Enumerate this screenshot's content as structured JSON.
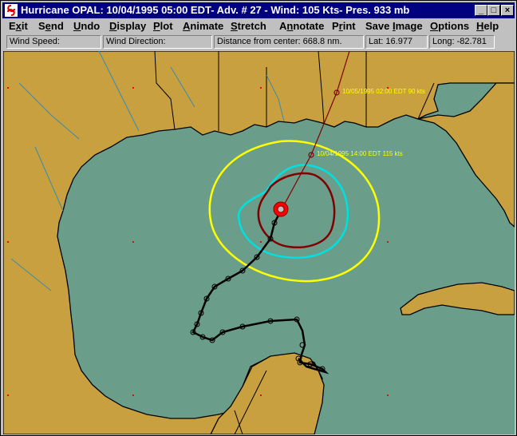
{
  "window": {
    "title": "Hurricane OPAL: 10/04/1995 05:00 EDT- Adv. # 27 - Wind: 105 Kts- Pres. 933 mb",
    "minimize_glyph": "_",
    "maximize_glyph": "□",
    "close_glyph": "×"
  },
  "menu": [
    {
      "pre": "E",
      "key": "x",
      "post": "it"
    },
    {
      "pre": "S",
      "key": "e",
      "post": "nd"
    },
    {
      "pre": "",
      "key": "U",
      "post": "ndo"
    },
    {
      "pre": "",
      "key": "D",
      "post": "isplay"
    },
    {
      "pre": "",
      "key": "P",
      "post": "lot"
    },
    {
      "pre": "",
      "key": "A",
      "post": "nimate"
    },
    {
      "pre": "",
      "key": "S",
      "post": "tretch"
    },
    {
      "pre": "A",
      "key": "n",
      "post": "notate"
    },
    {
      "pre": "P",
      "key": "r",
      "post": "int"
    },
    {
      "pre": "Save ",
      "key": "I",
      "post": "mage"
    },
    {
      "pre": "",
      "key": "O",
      "post": "ptions"
    },
    {
      "pre": "",
      "key": "H",
      "post": "elp"
    }
  ],
  "status": {
    "wind_speed": "Wind Speed:",
    "wind_direction": "Wind Direction:",
    "distance": "Distance from center: 668.8 nm.",
    "lat": "Lat: 16.977",
    "long": "Long: -82.781"
  },
  "map": {
    "forecast_labels": [
      "10/05/1995 02:00 EDT 90 kts",
      "10/04/1995 14:00 EDT 115 kts"
    ],
    "colors": {
      "water": "#6a9e8a",
      "land": "#c8a040",
      "radius_34kt": "#ffff00",
      "radius_50kt": "#00e0e0",
      "radius_64kt": "#800000",
      "eye": "#ff0000",
      "forecast_track": "#800000",
      "past_track": "#000000"
    }
  }
}
